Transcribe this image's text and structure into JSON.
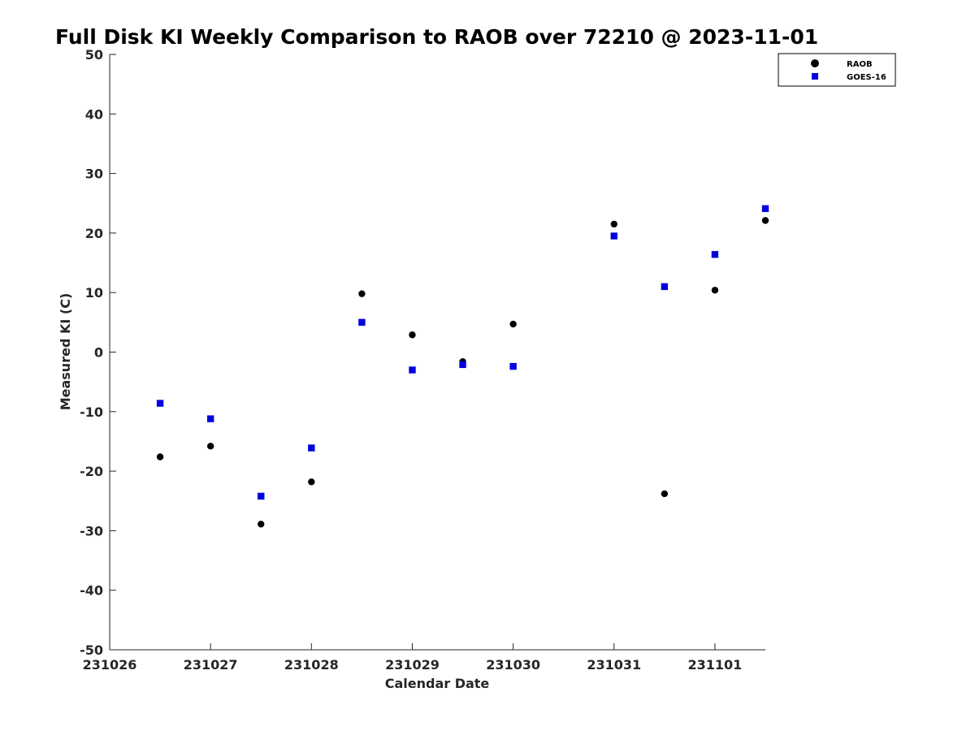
{
  "chart_data": {
    "type": "scatter",
    "title": "Full Disk KI Weekly Comparison to RAOB over 72210 @ 2023-11-01",
    "xlabel": "Calendar Date",
    "ylabel": "Measured KI (C)",
    "x_ticks": [
      "231026",
      "231027",
      "231028",
      "231029",
      "231030",
      "231031",
      "231101"
    ],
    "xlim": [
      0,
      6.5
    ],
    "ylim": [
      -50,
      50
    ],
    "y_ticks": [
      50,
      40,
      30,
      20,
      10,
      0,
      -10,
      -20,
      -30,
      -40,
      -50
    ],
    "grid": false,
    "legend_position": "top-right",
    "series": [
      {
        "name": "RAOB",
        "marker": "circle",
        "color": "#000000",
        "points": [
          {
            "x": 0.5,
            "y": -17.6
          },
          {
            "x": 1.0,
            "y": -15.8
          },
          {
            "x": 1.5,
            "y": -28.9
          },
          {
            "x": 2.0,
            "y": -21.8
          },
          {
            "x": 2.5,
            "y": 9.8
          },
          {
            "x": 3.0,
            "y": 2.9
          },
          {
            "x": 3.5,
            "y": -1.6
          },
          {
            "x": 4.0,
            "y": 4.7
          },
          {
            "x": 5.0,
            "y": 21.5
          },
          {
            "x": 5.5,
            "y": -23.8
          },
          {
            "x": 6.0,
            "y": 10.4
          },
          {
            "x": 6.5,
            "y": 22.1
          }
        ]
      },
      {
        "name": "GOES-16",
        "marker": "square",
        "color": "#0000dd",
        "points": [
          {
            "x": 0.5,
            "y": -8.6
          },
          {
            "x": 1.0,
            "y": -11.2
          },
          {
            "x": 1.5,
            "y": -24.2
          },
          {
            "x": 2.0,
            "y": -16.1
          },
          {
            "x": 2.5,
            "y": 5.0
          },
          {
            "x": 3.0,
            "y": -3.0
          },
          {
            "x": 3.5,
            "y": -2.1
          },
          {
            "x": 4.0,
            "y": -2.4
          },
          {
            "x": 5.0,
            "y": 19.5
          },
          {
            "x": 5.5,
            "y": 11.0
          },
          {
            "x": 6.0,
            "y": 16.4
          },
          {
            "x": 6.5,
            "y": 24.1
          }
        ]
      }
    ]
  }
}
